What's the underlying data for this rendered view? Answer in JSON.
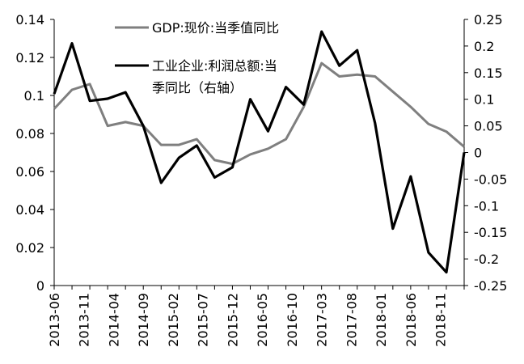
{
  "chart_data": {
    "type": "line",
    "x": [
      "2013-06",
      "2013-09",
      "2013-12",
      "2014-03",
      "2014-06",
      "2014-09",
      "2014-12",
      "2015-03",
      "2015-06",
      "2015-09",
      "2015-12",
      "2016-03",
      "2016-06",
      "2016-09",
      "2016-12",
      "2017-03",
      "2017-06",
      "2017-09",
      "2017-12",
      "2018-03",
      "2018-06",
      "2018-09",
      "2018-12",
      "2019-03"
    ],
    "x_tick_labels": [
      "2013-06",
      "2013-11",
      "2014-04",
      "2014-09",
      "2015-02",
      "2015-07",
      "2015-12",
      "2016-05",
      "2016-10",
      "2017-03",
      "2017-08",
      "2018-01",
      "2018-06",
      "2018-11"
    ],
    "y_left": {
      "ylim": [
        0,
        0.14
      ],
      "ticks": [
        "0",
        "0.02",
        "0.04",
        "0.06",
        "0.08",
        "0.1",
        "0.12",
        "0.14"
      ]
    },
    "y_right": {
      "ylim": [
        -0.25,
        0.25
      ],
      "ticks": [
        "0.25",
        "0.2",
        "0.15",
        "0.1",
        "0.05",
        "0",
        "-0.05",
        "-0.1",
        "-0.15",
        "-0.2",
        "-0.25"
      ]
    },
    "series": [
      {
        "name": "GDP:现价:当季值同比",
        "axis": "left",
        "color": "#7f7f7f",
        "values": [
          0.093,
          0.103,
          0.106,
          0.084,
          0.086,
          0.084,
          0.074,
          0.074,
          0.077,
          0.066,
          0.064,
          0.069,
          0.072,
          0.077,
          0.094,
          0.117,
          0.11,
          0.111,
          0.11,
          0.102,
          0.094,
          0.085,
          0.081,
          0.073
        ]
      },
      {
        "name": "工业企业:利润总额:当季同比（右轴）",
        "axis": "right",
        "color": "#000000",
        "values": [
          0.11,
          0.205,
          0.097,
          0.101,
          0.113,
          0.05,
          -0.057,
          -0.01,
          0.013,
          -0.047,
          -0.028,
          0.1,
          0.04,
          0.123,
          0.09,
          0.227,
          0.163,
          0.192,
          0.055,
          -0.143,
          -0.045,
          -0.188,
          -0.225,
          0.0
        ]
      }
    ],
    "legend": {
      "position": "top-center",
      "labels": [
        "GDP:现价:当季值同比",
        "工业企业:利润总额:当",
        "季同比（右轴）"
      ]
    }
  }
}
